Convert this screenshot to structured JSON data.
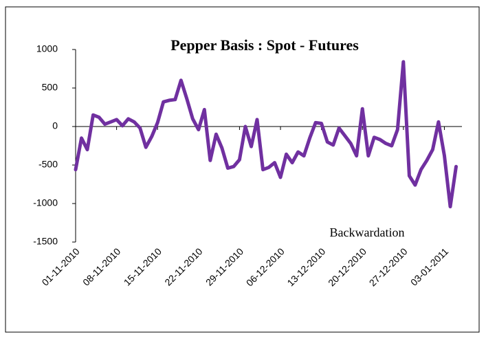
{
  "chart_data": {
    "type": "line",
    "title": "Pepper Basis : Spot - Futures",
    "annotation": "Backwardation",
    "x": [
      "01-11-2010",
      "02-11-2010",
      "03-11-2010",
      "04-11-2010",
      "05-11-2010",
      "06-11-2010",
      "07-11-2010",
      "08-11-2010",
      "09-11-2010",
      "10-11-2010",
      "11-11-2010",
      "12-11-2010",
      "13-11-2010",
      "14-11-2010",
      "15-11-2010",
      "16-11-2010",
      "17-11-2010",
      "18-11-2010",
      "19-11-2010",
      "20-11-2010",
      "21-11-2010",
      "22-11-2010",
      "23-11-2010",
      "24-11-2010",
      "25-11-2010",
      "26-11-2010",
      "27-11-2010",
      "28-11-2010",
      "29-11-2010",
      "30-11-2010",
      "01-12-2010",
      "02-12-2010",
      "03-12-2010",
      "04-12-2010",
      "05-12-2010",
      "06-12-2010",
      "07-12-2010",
      "08-12-2010",
      "09-12-2010",
      "10-12-2010",
      "11-12-2010",
      "12-12-2010",
      "13-12-2010",
      "14-12-2010",
      "15-12-2010",
      "16-12-2010",
      "17-12-2010",
      "18-12-2010",
      "19-12-2010",
      "20-12-2010",
      "21-12-2010",
      "22-12-2010",
      "23-12-2010",
      "24-12-2010",
      "25-12-2010",
      "26-12-2010",
      "27-12-2010",
      "28-12-2010",
      "29-12-2010",
      "30-12-2010",
      "31-12-2010",
      "01-01-2011",
      "02-01-2011",
      "03-01-2011",
      "04-01-2011",
      "05-01-2011"
    ],
    "series": [
      {
        "color": "#7030a0",
        "values": [
          -560,
          -150,
          -300,
          150,
          120,
          30,
          60,
          90,
          10,
          100,
          60,
          -20,
          -270,
          -130,
          50,
          320,
          340,
          350,
          600,
          360,
          100,
          -40,
          220,
          -440,
          -100,
          -280,
          -540,
          -520,
          -430,
          0,
          -260,
          90,
          -560,
          -530,
          -470,
          -660,
          -360,
          -470,
          -330,
          -380,
          -150,
          50,
          40,
          -200,
          -240,
          -20,
          -120,
          -220,
          -380,
          230,
          -380,
          -140,
          -170,
          -220,
          -250,
          -40,
          840,
          -640,
          -760,
          -560,
          -440,
          -300,
          60,
          -380,
          -1040,
          -520
        ]
      }
    ],
    "xlim": [
      "01-11-2010",
      "06-01-2011"
    ],
    "xticks": [
      "01-11-2010",
      "08-11-2010",
      "15-11-2010",
      "22-11-2010",
      "29-11-2010",
      "06-12-2010",
      "13-12-2010",
      "20-12-2010",
      "27-12-2010",
      "03-01-2011"
    ],
    "ylim": [
      -1500,
      1000
    ],
    "yticks": [
      -1500,
      -1000,
      -500,
      0,
      500,
      1000
    ]
  }
}
